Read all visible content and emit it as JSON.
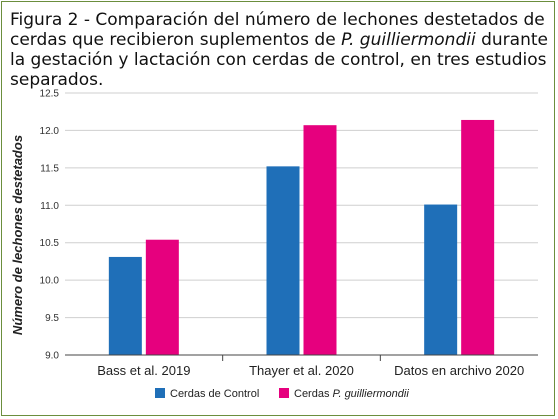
{
  "caption": {
    "part1": "Figura 2 - Comparación del número de lechones destetados de cerdas que recibieron suplementos de ",
    "species": "P. guilliermondii",
    "part2": " durante la gestación y lactación con cerdas de control, en tres estudios separados."
  },
  "chart_data": {
    "type": "bar",
    "categories": [
      "Bass et al. 2019",
      "Thayer et al. 2020",
      "Datos en archivo 2020"
    ],
    "series": [
      {
        "name": "Cerdas de Control",
        "color": "#1f6fb8",
        "values": [
          10.31,
          11.52,
          11.01
        ]
      },
      {
        "name": "Cerdas P. guilliermondii",
        "prefix": "Cerdas ",
        "italic": "P. guilliermondii",
        "color": "#e6007e",
        "values": [
          10.54,
          12.07,
          12.14
        ]
      }
    ],
    "ylabel": "Número de lechones destetados",
    "ylim": [
      9.0,
      12.5
    ],
    "yticks": [
      "9.0",
      "9.5",
      "10.0",
      "10.5",
      "11.0",
      "11.5",
      "12.0",
      "12.5"
    ],
    "grid": true,
    "legend": "bottom"
  }
}
